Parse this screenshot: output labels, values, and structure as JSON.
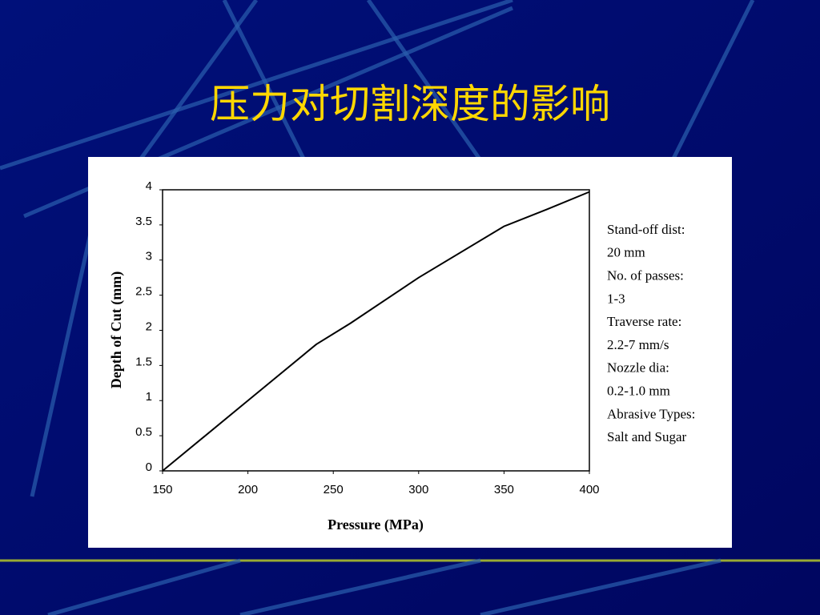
{
  "slide_title": "压力对切割深度的影响",
  "chart_data": {
    "type": "line",
    "x_label": "Pressure (MPa)",
    "y_label": "Depth of Cut (mm)",
    "x": [
      150,
      200,
      240,
      260,
      300,
      350,
      375,
      400
    ],
    "values": [
      0,
      1.0,
      1.8,
      2.1,
      2.75,
      3.48,
      3.72,
      3.97
    ],
    "color": "#000000",
    "xlim": [
      150,
      400
    ],
    "xticks": [
      150,
      200,
      250,
      300,
      350,
      400
    ],
    "ylim": [
      0,
      4
    ],
    "yticks": [
      0,
      0.5,
      1,
      1.5,
      2,
      2.5,
      3,
      3.5,
      4
    ],
    "annotation": [
      "Stand-off dist:",
      "20 mm",
      "No. of passes:",
      "1-3",
      "Traverse rate:",
      "2.2-7 mm/s",
      "Nozzle dia:",
      "0.2-1.0 mm",
      "Abrasive Types:",
      "Salt and Sugar"
    ]
  }
}
